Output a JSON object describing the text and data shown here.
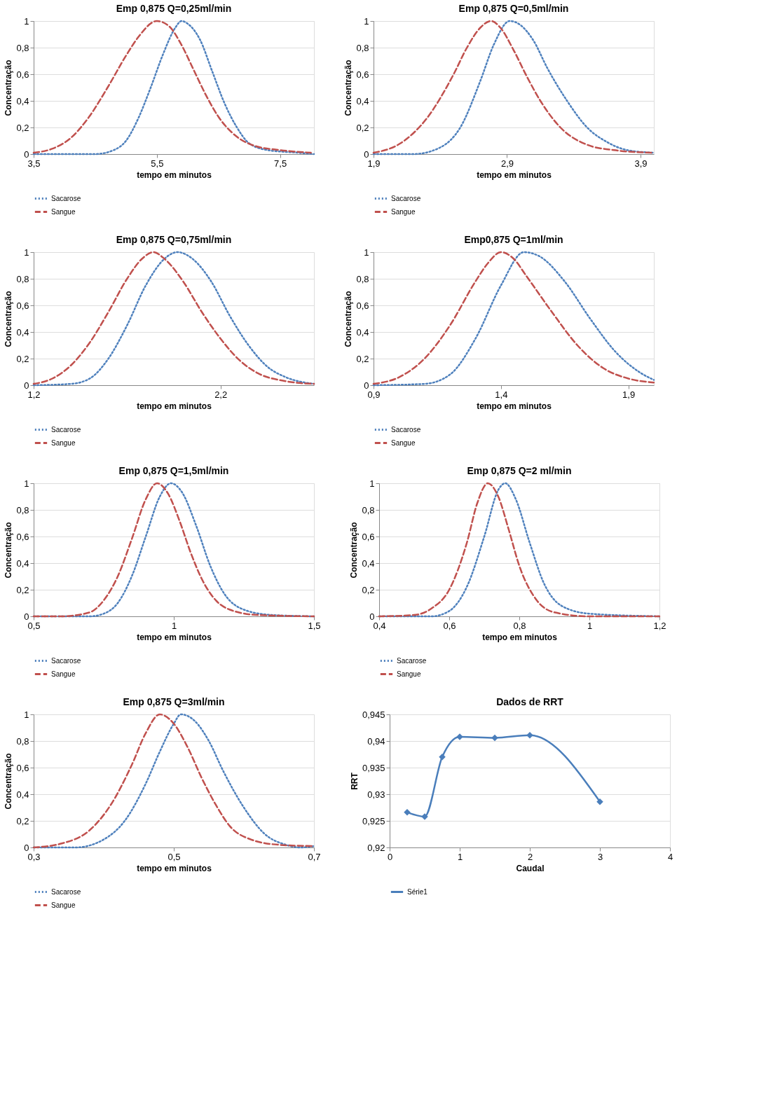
{
  "chart_data": [
    {
      "type": "line",
      "title": "Emp 0,875 Q=0,25ml/min",
      "xlabel": "tempo em minutos",
      "ylabel": "Concentração",
      "xlim": [
        3.5,
        8.05
      ],
      "xticks": [
        {
          "value": 3.5,
          "label": "3,5"
        },
        {
          "value": 5.5,
          "label": "5,5"
        },
        {
          "value": 7.5,
          "label": "7,5"
        }
      ],
      "ylim": [
        0,
        1
      ],
      "yticks": [
        0,
        {
          "value": 0.2,
          "label": "0,2"
        },
        {
          "value": 0.4,
          "label": "0,4"
        },
        {
          "value": 0.6,
          "label": "0,6"
        },
        {
          "value": 0.8,
          "label": "0,8"
        },
        1
      ],
      "grid": "y",
      "legend": "bottom left",
      "marker": "none",
      "series": [
        {
          "name": "Sacarose",
          "color": "#4f81bd",
          "line_style": "dotted",
          "x": [
            3.5,
            4.5,
            4.8,
            5.0,
            5.2,
            5.4,
            5.6,
            5.8,
            5.9,
            6.0,
            6.2,
            6.4,
            6.6,
            6.8,
            7.0,
            7.3,
            7.8,
            8.05
          ],
          "values": [
            0,
            0,
            0.03,
            0.1,
            0.27,
            0.5,
            0.75,
            0.95,
            1.0,
            0.98,
            0.86,
            0.62,
            0.38,
            0.2,
            0.08,
            0.03,
            0.01,
            0
          ]
        },
        {
          "name": "Sangue",
          "color": "#c0504d",
          "line_style": "dashed",
          "x": [
            3.5,
            3.8,
            4.1,
            4.4,
            4.7,
            5.0,
            5.2,
            5.5,
            5.7,
            5.9,
            6.1,
            6.3,
            6.5,
            6.8,
            7.1,
            7.5,
            8.0
          ],
          "values": [
            0.01,
            0.04,
            0.12,
            0.28,
            0.5,
            0.74,
            0.88,
            1.0,
            0.96,
            0.82,
            0.63,
            0.44,
            0.28,
            0.13,
            0.06,
            0.03,
            0.01
          ]
        }
      ]
    },
    {
      "type": "line",
      "title": "Emp 0,875 Q=0,5ml/min",
      "xlabel": "tempo em minutos",
      "ylabel": "Concentração",
      "xlim": [
        1.9,
        4.0
      ],
      "xticks": [
        {
          "value": 1.9,
          "label": "1,9"
        },
        {
          "value": 2.9,
          "label": "2,9"
        },
        {
          "value": 3.9,
          "label": "3,9"
        }
      ],
      "ylim": [
        0,
        1
      ],
      "yticks": [
        0,
        {
          "value": 0.2,
          "label": "0,2"
        },
        {
          "value": 0.4,
          "label": "0,4"
        },
        {
          "value": 0.6,
          "label": "0,6"
        },
        {
          "value": 0.8,
          "label": "0,8"
        },
        1
      ],
      "grid": "y",
      "legend": "bottom left",
      "marker": "none",
      "series": [
        {
          "name": "Sacarose",
          "color": "#4f81bd",
          "line_style": "dotted",
          "x": [
            1.9,
            2.2,
            2.4,
            2.55,
            2.7,
            2.8,
            2.92,
            3.0,
            3.1,
            3.2,
            3.35,
            3.5,
            3.65,
            3.8,
            4.0
          ],
          "values": [
            0,
            0,
            0.05,
            0.2,
            0.55,
            0.82,
            1.0,
            0.97,
            0.85,
            0.65,
            0.4,
            0.2,
            0.09,
            0.03,
            0.01
          ]
        },
        {
          "name": "Sangue",
          "color": "#c0504d",
          "line_style": "dashed",
          "x": [
            1.9,
            2.1,
            2.3,
            2.5,
            2.6,
            2.7,
            2.78,
            2.85,
            2.95,
            3.05,
            3.15,
            3.3,
            3.5,
            3.7,
            4.0
          ],
          "values": [
            0.01,
            0.08,
            0.27,
            0.6,
            0.8,
            0.95,
            1.0,
            0.95,
            0.78,
            0.58,
            0.4,
            0.2,
            0.07,
            0.03,
            0.01
          ]
        }
      ]
    },
    {
      "type": "line",
      "title": "Emp 0,875 Q=0,75ml/min",
      "xlabel": "tempo em minutos",
      "ylabel": "Concentração",
      "xlim": [
        1.2,
        2.7
      ],
      "xticks": [
        {
          "value": 1.2,
          "label": "1,2"
        },
        {
          "value": 2.2,
          "label": "2,2"
        }
      ],
      "ylim": [
        0,
        1
      ],
      "yticks": [
        0,
        {
          "value": 0.2,
          "label": "0,2"
        },
        {
          "value": 0.4,
          "label": "0,4"
        },
        {
          "value": 0.6,
          "label": "0,6"
        },
        {
          "value": 0.8,
          "label": "0,8"
        },
        1
      ],
      "grid": "y",
      "legend": "bottom left",
      "marker": "none",
      "series": [
        {
          "name": "Sacarose",
          "color": "#4f81bd",
          "line_style": "dotted",
          "x": [
            1.2,
            1.4,
            1.5,
            1.6,
            1.7,
            1.8,
            1.9,
            1.97,
            2.05,
            2.15,
            2.25,
            2.35,
            2.45,
            2.55,
            2.7
          ],
          "values": [
            0,
            0.01,
            0.05,
            0.2,
            0.45,
            0.75,
            0.95,
            1.0,
            0.95,
            0.78,
            0.52,
            0.3,
            0.14,
            0.06,
            0.01
          ]
        },
        {
          "name": "Sangue",
          "color": "#c0504d",
          "line_style": "dashed",
          "x": [
            1.2,
            1.3,
            1.4,
            1.5,
            1.6,
            1.7,
            1.78,
            1.84,
            1.9,
            2.0,
            2.1,
            2.2,
            2.3,
            2.4,
            2.55,
            2.7
          ],
          "values": [
            0.01,
            0.05,
            0.15,
            0.32,
            0.55,
            0.8,
            0.95,
            1.0,
            0.95,
            0.78,
            0.55,
            0.35,
            0.19,
            0.09,
            0.03,
            0.01
          ]
        }
      ]
    },
    {
      "type": "line",
      "title": "Emp0,875 Q=1ml/min",
      "xlabel": "tempo em minutos",
      "ylabel": "Concentração",
      "xlim": [
        0.9,
        2.0
      ],
      "xticks": [
        {
          "value": 0.9,
          "label": "0,9"
        },
        {
          "value": 1.4,
          "label": "1,4"
        },
        {
          "value": 1.9,
          "label": "1,9"
        }
      ],
      "ylim": [
        0,
        1
      ],
      "yticks": [
        0,
        {
          "value": 0.2,
          "label": "0,2"
        },
        {
          "value": 0.4,
          "label": "0,4"
        },
        {
          "value": 0.6,
          "label": "0,6"
        },
        {
          "value": 0.8,
          "label": "0,8"
        },
        1
      ],
      "grid": "y",
      "legend": "bottom left",
      "marker": "none",
      "series": [
        {
          "name": "Sacarose",
          "color": "#4f81bd",
          "line_style": "dotted",
          "x": [
            0.9,
            1.1,
            1.2,
            1.3,
            1.4,
            1.49,
            1.55,
            1.65,
            1.75,
            1.85,
            1.95,
            2.0
          ],
          "values": [
            0,
            0.01,
            0.08,
            0.35,
            0.75,
            1.0,
            0.97,
            0.78,
            0.5,
            0.25,
            0.09,
            0.04
          ]
        },
        {
          "name": "Sangue",
          "color": "#c0504d",
          "line_style": "dashed",
          "x": [
            0.9,
            1.0,
            1.1,
            1.2,
            1.3,
            1.35,
            1.4,
            1.45,
            1.5,
            1.6,
            1.7,
            1.8,
            1.9,
            2.0
          ],
          "values": [
            0.01,
            0.06,
            0.2,
            0.45,
            0.78,
            0.92,
            1.0,
            0.95,
            0.82,
            0.55,
            0.3,
            0.13,
            0.05,
            0.02
          ]
        }
      ]
    },
    {
      "type": "line",
      "title": "Emp 0,875 Q=1,5ml/min",
      "xlabel": "tempo em minutos",
      "ylabel": "Concentração",
      "xlim": [
        0.5,
        1.5
      ],
      "xticks": [
        {
          "value": 0.5,
          "label": "0,5"
        },
        1,
        {
          "value": 1.5,
          "label": "1,5"
        }
      ],
      "ylim": [
        0,
        1
      ],
      "yticks": [
        0,
        {
          "value": 0.2,
          "label": "0,2"
        },
        {
          "value": 0.4,
          "label": "0,4"
        },
        {
          "value": 0.6,
          "label": "0,6"
        },
        {
          "value": 0.8,
          "label": "0,8"
        },
        1
      ],
      "grid": "y",
      "legend": "bottom left",
      "marker": "none",
      "series": [
        {
          "name": "Sacarose",
          "color": "#4f81bd",
          "line_style": "dotted",
          "x": [
            0.5,
            0.7,
            0.75,
            0.8,
            0.85,
            0.9,
            0.95,
            0.99,
            1.03,
            1.08,
            1.13,
            1.18,
            1.25,
            1.35,
            1.5
          ],
          "values": [
            0,
            0,
            0.02,
            0.1,
            0.3,
            0.6,
            0.9,
            1.0,
            0.93,
            0.68,
            0.38,
            0.17,
            0.05,
            0.01,
            0
          ]
        },
        {
          "name": "Sangue",
          "color": "#c0504d",
          "line_style": "dashed",
          "x": [
            0.5,
            0.6,
            0.7,
            0.75,
            0.8,
            0.85,
            0.9,
            0.94,
            0.98,
            1.02,
            1.06,
            1.1,
            1.15,
            1.2,
            1.3,
            1.5
          ],
          "values": [
            0,
            0,
            0.03,
            0.12,
            0.3,
            0.58,
            0.88,
            1.0,
            0.92,
            0.72,
            0.48,
            0.28,
            0.12,
            0.05,
            0.01,
            0
          ]
        }
      ]
    },
    {
      "type": "line",
      "title": "Emp 0,875 Q=2 ml/min",
      "xlabel": "tempo em minutos",
      "ylabel": "Concentração",
      "xlim": [
        0.4,
        1.2
      ],
      "xticks": [
        {
          "value": 0.4,
          "label": "0,4"
        },
        {
          "value": 0.6,
          "label": "0,6"
        },
        {
          "value": 0.8,
          "label": "0,8"
        },
        1,
        {
          "value": 1.2,
          "label": "1,2"
        }
      ],
      "ylim": [
        0,
        1
      ],
      "yticks": [
        0,
        {
          "value": 0.2,
          "label": "0,2"
        },
        {
          "value": 0.4,
          "label": "0,4"
        },
        {
          "value": 0.6,
          "label": "0,6"
        },
        {
          "value": 0.8,
          "label": "0,8"
        },
        1
      ],
      "grid": "y",
      "legend": "bottom left",
      "marker": "none",
      "series": [
        {
          "name": "Sacarose",
          "color": "#4f81bd",
          "line_style": "dotted",
          "x": [
            0.4,
            0.55,
            0.6,
            0.65,
            0.7,
            0.74,
            0.76,
            0.79,
            0.83,
            0.87,
            0.92,
            1.0,
            1.2
          ],
          "values": [
            0,
            0,
            0.04,
            0.22,
            0.6,
            0.95,
            1.0,
            0.88,
            0.55,
            0.25,
            0.08,
            0.02,
            0
          ]
        },
        {
          "name": "Sangue",
          "color": "#c0504d",
          "line_style": "dashed",
          "x": [
            0.4,
            0.5,
            0.55,
            0.6,
            0.65,
            0.68,
            0.71,
            0.74,
            0.77,
            0.8,
            0.85,
            0.9,
            1.0,
            1.2
          ],
          "values": [
            0,
            0.01,
            0.06,
            0.2,
            0.55,
            0.85,
            1.0,
            0.9,
            0.65,
            0.38,
            0.12,
            0.03,
            0,
            0
          ]
        }
      ]
    },
    {
      "type": "line",
      "title": "Emp 0,875 Q=3ml/min",
      "xlabel": "tempo em minutos",
      "ylabel": "Concentração",
      "xlim": [
        0.3,
        0.7
      ],
      "xticks": [
        {
          "value": 0.3,
          "label": "0,3"
        },
        {
          "value": 0.5,
          "label": "0,5"
        },
        {
          "value": 0.7,
          "label": "0,7"
        }
      ],
      "ylim": [
        0,
        1
      ],
      "yticks": [
        0,
        {
          "value": 0.2,
          "label": "0,2"
        },
        {
          "value": 0.4,
          "label": "0,4"
        },
        {
          "value": 0.6,
          "label": "0,6"
        },
        {
          "value": 0.8,
          "label": "0,8"
        },
        1
      ],
      "grid": "y",
      "legend": "bottom left",
      "marker": "none",
      "series": [
        {
          "name": "Sacarose",
          "color": "#4f81bd",
          "line_style": "dotted",
          "x": [
            0.3,
            0.36,
            0.4,
            0.43,
            0.46,
            0.48,
            0.5,
            0.51,
            0.53,
            0.55,
            0.57,
            0.6,
            0.63,
            0.66,
            0.68,
            0.7
          ],
          "values": [
            0,
            0,
            0.06,
            0.2,
            0.48,
            0.72,
            0.93,
            1.0,
            0.95,
            0.8,
            0.58,
            0.3,
            0.1,
            0.02,
            0,
            0.01
          ]
        },
        {
          "name": "Sangue",
          "color": "#c0504d",
          "line_style": "dashed",
          "x": [
            0.3,
            0.34,
            0.38,
            0.41,
            0.44,
            0.46,
            0.48,
            0.5,
            0.52,
            0.54,
            0.56,
            0.58,
            0.61,
            0.65,
            0.7
          ],
          "values": [
            0,
            0.03,
            0.13,
            0.32,
            0.62,
            0.86,
            1.0,
            0.93,
            0.75,
            0.52,
            0.32,
            0.16,
            0.06,
            0.02,
            0.01
          ]
        }
      ]
    },
    {
      "type": "line",
      "title": "Dados de RRT",
      "xlabel": "Caudal",
      "ylabel": "RRT",
      "xlim": [
        0,
        4
      ],
      "xticks": [
        0,
        1,
        2,
        3,
        4
      ],
      "ylim": [
        0.92,
        0.945
      ],
      "yticks": [
        {
          "value": 0.92,
          "label": "0,92"
        },
        {
          "value": 0.925,
          "label": "0,925"
        },
        {
          "value": 0.93,
          "label": "0,93"
        },
        {
          "value": 0.935,
          "label": "0,935"
        },
        {
          "value": 0.94,
          "label": "0,94"
        },
        {
          "value": 0.945,
          "label": "0,945"
        }
      ],
      "grid": "y",
      "legend": "bottom left",
      "marker": "diamond",
      "series": [
        {
          "name": "Série1",
          "color": "#4a7ebb",
          "line_style": "solid",
          "x": [
            0.25,
            0.5,
            0.75,
            1,
            1.5,
            2,
            3
          ],
          "values": [
            0.9266,
            0.9258,
            0.937,
            0.9408,
            0.9406,
            0.9411,
            0.9286
          ]
        }
      ]
    }
  ]
}
